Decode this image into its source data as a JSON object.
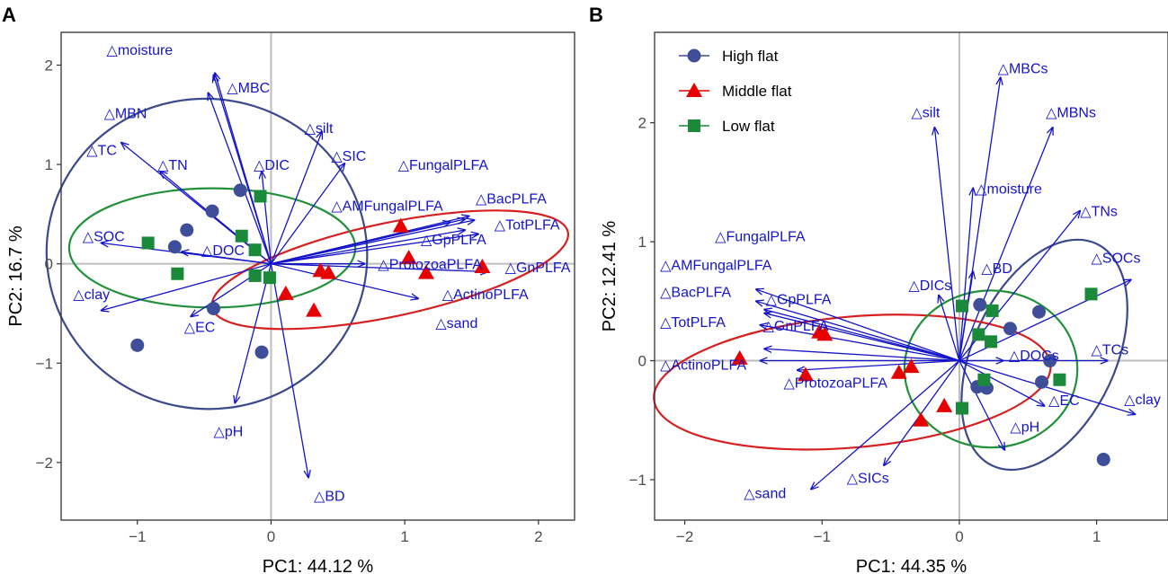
{
  "colors": {
    "high": "#3f4e99",
    "middle": "#e60000",
    "low": "#1a8a3a",
    "vector": "#1414c8",
    "ellipse_high": "#3a4a8c",
    "ellipse_middle": "#d62020",
    "ellipse_low": "#22913a",
    "zero_line": "#bdbdbd"
  },
  "chart_data": [
    {
      "type": "scatter",
      "panel": "A",
      "xlabel": "PC1: 44.12 %",
      "ylabel": "PC2: 16.7 %",
      "xlim": [
        -1.57,
        2.27
      ],
      "ylim": [
        -2.58,
        2.33
      ],
      "xticks": [
        -1,
        0,
        1,
        2
      ],
      "yticks": [
        -2,
        -1,
        0,
        1,
        2
      ],
      "groups": [
        {
          "name": "High flat",
          "marker": "circle",
          "points": [
            [
              -1.0,
              -0.82
            ],
            [
              -0.72,
              0.17
            ],
            [
              -0.63,
              0.34
            ],
            [
              -0.44,
              0.53
            ],
            [
              -0.43,
              -0.45
            ],
            [
              -0.23,
              0.74
            ],
            [
              -0.07,
              -0.89
            ]
          ]
        },
        {
          "name": "Middle flat",
          "marker": "triangle",
          "points": [
            [
              0.11,
              -0.3
            ],
            [
              0.32,
              -0.47
            ],
            [
              0.37,
              -0.07
            ],
            [
              0.43,
              -0.09
            ],
            [
              0.97,
              0.38
            ],
            [
              1.03,
              0.06
            ],
            [
              1.16,
              -0.09
            ],
            [
              1.58,
              -0.03
            ]
          ]
        },
        {
          "name": "Low flat",
          "marker": "square",
          "points": [
            [
              -0.92,
              0.21
            ],
            [
              -0.7,
              -0.1
            ],
            [
              -0.22,
              0.28
            ],
            [
              -0.12,
              0.14
            ],
            [
              -0.12,
              -0.12
            ],
            [
              -0.08,
              0.68
            ],
            [
              -0.01,
              -0.14
            ]
          ]
        }
      ],
      "vectors": [
        {
          "label": "moisture",
          "x": -0.42,
          "y": 1.92,
          "lx": -1.23,
          "ly": 2.16
        },
        {
          "label": "MBC",
          "x": -0.43,
          "y": 1.9,
          "lx": -0.33,
          "ly": 1.78
        },
        {
          "label": "MBN",
          "x": -0.47,
          "y": 1.72,
          "lx": -1.25,
          "ly": 1.52
        },
        {
          "label": "TC",
          "x": -1.12,
          "y": 1.22,
          "lx": -1.38,
          "ly": 1.15
        },
        {
          "label": "TN",
          "x": -0.83,
          "y": 0.93,
          "lx": -0.85,
          "ly": 1.0
        },
        {
          "label": "silt",
          "x": 0.38,
          "y": 1.33,
          "lx": 0.25,
          "ly": 1.37
        },
        {
          "label": "DIC",
          "x": -0.07,
          "y": 0.93,
          "lx": -0.13,
          "ly": 1.0
        },
        {
          "label": "SIC",
          "x": 0.55,
          "y": 1.01,
          "lx": 0.45,
          "ly": 1.09
        },
        {
          "label": "FungalPLFA",
          "x": 1.48,
          "y": 0.48,
          "lx": 0.95,
          "ly": 1.0
        },
        {
          "label": "AMFungalPLFA",
          "x": 1.34,
          "y": 0.42,
          "lx": 0.45,
          "ly": 0.59
        },
        {
          "label": "BacPLFA",
          "x": 1.45,
          "y": 0.45,
          "lx": 1.53,
          "ly": 0.66
        },
        {
          "label": "TotPLFA",
          "x": 1.52,
          "y": 0.44,
          "lx": 1.67,
          "ly": 0.4
        },
        {
          "label": "GpPLFA",
          "x": 1.45,
          "y": 0.34,
          "lx": 1.12,
          "ly": 0.25
        },
        {
          "label": "ProtozoaPLFA",
          "x": 0.7,
          "y": 0.0,
          "lx": 0.8,
          "ly": 0.0
        },
        {
          "label": "GnPLFA",
          "x": 1.62,
          "y": -0.08,
          "lx": 1.75,
          "ly": -0.03
        },
        {
          "label": "ActinoPLFA",
          "x": 1.55,
          "y": 0.3,
          "lx": 1.28,
          "ly": -0.3
        },
        {
          "label": "sand",
          "x": 1.1,
          "y": -0.35,
          "lx": 1.23,
          "ly": -0.59
        },
        {
          "label": "SOC",
          "x": -1.27,
          "y": 0.21,
          "lx": -1.41,
          "ly": 0.28
        },
        {
          "label": "DOC",
          "x": -0.67,
          "y": 0.12,
          "lx": -0.52,
          "ly": 0.14
        },
        {
          "label": "clay",
          "x": -1.27,
          "y": -0.47,
          "lx": -1.48,
          "ly": -0.3
        },
        {
          "label": "EC",
          "x": -0.6,
          "y": -0.53,
          "lx": -0.65,
          "ly": -0.63
        },
        {
          "label": "pH",
          "x": -0.27,
          "y": -1.4,
          "lx": -0.43,
          "ly": -1.68
        },
        {
          "label": "BD",
          "x": 0.28,
          "y": -2.15,
          "lx": 0.32,
          "ly": -2.33
        }
      ],
      "ellipses": [
        {
          "group": "High flat",
          "cx": -0.48,
          "cy": 0.1,
          "rx": 1.2,
          "ry": 1.56,
          "angle_deg": -10
        },
        {
          "group": "Middle flat",
          "cx": 0.89,
          "cy": -0.06,
          "rx": 1.36,
          "ry": 0.47,
          "angle_deg": 12
        },
        {
          "group": "Low flat",
          "cx": -0.44,
          "cy": 0.16,
          "rx": 1.07,
          "ry": 0.6,
          "angle_deg": 0
        }
      ]
    },
    {
      "type": "scatter",
      "panel": "B",
      "xlabel": "PC1: 44.35 %",
      "ylabel": "PC2: 12.41 %",
      "xlim": [
        -2.22,
        1.52
      ],
      "ylim": [
        -1.34,
        2.76
      ],
      "xticks": [
        -2,
        -1,
        0,
        1
      ],
      "yticks": [
        -1,
        0,
        1,
        2
      ],
      "legend": {
        "position": "top-left",
        "entries": [
          "High flat",
          "Middle flat",
          "Low flat"
        ]
      },
      "groups": [
        {
          "name": "High flat",
          "marker": "circle",
          "points": [
            [
              0.13,
              -0.22
            ],
            [
              0.2,
              -0.23
            ],
            [
              0.15,
              0.47
            ],
            [
              0.37,
              0.27
            ],
            [
              0.58,
              0.41
            ],
            [
              0.6,
              -0.18
            ],
            [
              0.66,
              0.0
            ],
            [
              1.05,
              -0.83
            ]
          ]
        },
        {
          "name": "Middle flat",
          "marker": "triangle",
          "points": [
            [
              -1.6,
              0.02
            ],
            [
              -1.12,
              -0.12
            ],
            [
              -1.02,
              0.24
            ],
            [
              -0.98,
              0.22
            ],
            [
              -0.44,
              -0.1
            ],
            [
              -0.35,
              -0.05
            ],
            [
              -0.28,
              -0.5
            ],
            [
              -0.11,
              -0.38
            ]
          ]
        },
        {
          "name": "Low flat",
          "marker": "square",
          "points": [
            [
              0.02,
              0.46
            ],
            [
              0.14,
              0.22
            ],
            [
              0.23,
              0.16
            ],
            [
              0.24,
              0.42
            ],
            [
              0.18,
              -0.16
            ],
            [
              0.73,
              -0.16
            ],
            [
              0.96,
              0.56
            ],
            [
              0.02,
              -0.4
            ]
          ]
        }
      ],
      "vectors": [
        {
          "label": "MBCs",
          "x": 0.3,
          "y": 2.38,
          "lx": 0.28,
          "ly": 2.46
        },
        {
          "label": "MBNs",
          "x": 0.68,
          "y": 1.96,
          "lx": 0.63,
          "ly": 2.09
        },
        {
          "label": "silt",
          "x": -0.18,
          "y": 1.96,
          "lx": -0.35,
          "ly": 2.09
        },
        {
          "label": "moisture",
          "x": 0.1,
          "y": 1.45,
          "lx": 0.12,
          "ly": 1.45
        },
        {
          "label": "TNs",
          "x": 0.88,
          "y": 1.26,
          "lx": 0.88,
          "ly": 1.26
        },
        {
          "label": "SOCs",
          "x": 1.25,
          "y": 0.68,
          "lx": 0.96,
          "ly": 0.87
        },
        {
          "label": "BD",
          "x": 0.1,
          "y": 0.75,
          "lx": 0.16,
          "ly": 0.78
        },
        {
          "label": "DICs",
          "x": -0.15,
          "y": 0.55,
          "lx": -0.37,
          "ly": 0.64
        },
        {
          "label": "FungalPLFA",
          "x": -1.48,
          "y": 0.6,
          "lx": -1.78,
          "ly": 1.05
        },
        {
          "label": "AMFungalPLFA",
          "x": -1.48,
          "y": 0.5,
          "lx": -2.18,
          "ly": 0.81
        },
        {
          "label": "BacPLFA",
          "x": -1.42,
          "y": 0.4,
          "lx": -2.18,
          "ly": 0.58
        },
        {
          "label": "GpPLFA",
          "x": -1.42,
          "y": 0.43,
          "lx": -1.41,
          "ly": 0.52
        },
        {
          "label": "GnPLFA",
          "x": -1.45,
          "y": 0.3,
          "lx": -1.43,
          "ly": 0.3
        },
        {
          "label": "TotPLFA",
          "x": -1.42,
          "y": 0.1,
          "lx": -2.18,
          "ly": 0.33
        },
        {
          "label": "ActinoPLFA",
          "x": -1.45,
          "y": 0.0,
          "lx": -2.18,
          "ly": -0.03
        },
        {
          "label": "ProtozoaPLFA",
          "x": -1.18,
          "y": -0.08,
          "lx": -1.28,
          "ly": -0.18
        },
        {
          "label": "DOCs",
          "x": 0.32,
          "y": 0.0,
          "lx": 0.36,
          "ly": 0.05
        },
        {
          "label": "TCs",
          "x": 1.08,
          "y": 0.0,
          "lx": 0.96,
          "ly": 0.1
        },
        {
          "label": "clay",
          "x": 1.28,
          "y": -0.45,
          "lx": 1.2,
          "ly": -0.32
        },
        {
          "label": "EC",
          "x": 0.62,
          "y": -0.38,
          "lx": 0.65,
          "ly": -0.33
        },
        {
          "label": "pH",
          "x": 0.33,
          "y": -0.75,
          "lx": 0.37,
          "ly": -0.55
        },
        {
          "label": "sand",
          "x": -1.08,
          "y": -1.08,
          "lx": -1.57,
          "ly": -1.11
        },
        {
          "label": "SICs",
          "x": -0.55,
          "y": -0.88,
          "lx": -0.82,
          "ly": -0.98
        }
      ],
      "ellipses": [
        {
          "group": "High flat",
          "cx": 0.62,
          "cy": 0.05,
          "rx": 0.52,
          "ry": 1.03,
          "angle_deg": -25
        },
        {
          "group": "Middle flat",
          "cx": -0.78,
          "cy": -0.18,
          "rx": 1.45,
          "ry": 0.55,
          "angle_deg": 5
        },
        {
          "group": "Low flat",
          "cx": 0.23,
          "cy": -0.07,
          "rx": 0.63,
          "ry": 0.66,
          "angle_deg": 0
        }
      ]
    }
  ],
  "labels": {
    "panel_a": "A",
    "panel_b": "B",
    "triangle": "△"
  }
}
